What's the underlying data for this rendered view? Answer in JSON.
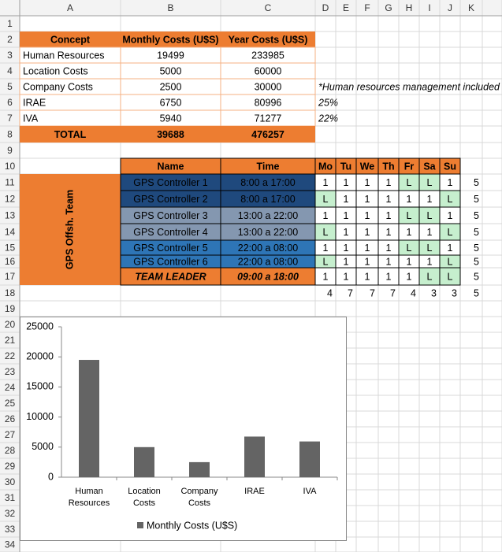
{
  "columns": [
    "A",
    "B",
    "C",
    "D",
    "E",
    "F",
    "G",
    "H",
    "I",
    "J",
    "K"
  ],
  "rows": [
    1,
    2,
    3,
    4,
    5,
    6,
    7,
    8,
    9,
    10,
    11,
    12,
    13,
    14,
    15,
    16,
    17,
    18,
    19,
    20,
    21,
    22,
    23,
    24,
    25,
    26,
    27,
    28,
    29,
    30,
    31,
    32,
    33,
    34
  ],
  "table": {
    "header": [
      "Concept",
      "Monthly Costs (U$S)",
      "Year Costs (U$S)"
    ],
    "rows": [
      [
        "Human Resources",
        19499,
        233985
      ],
      [
        "Location Costs",
        5000,
        60000
      ],
      [
        "Company Costs",
        2500,
        30000
      ],
      [
        "IRAE",
        6750,
        80996
      ],
      [
        "IVA",
        5940,
        71277
      ]
    ],
    "total": [
      "TOTAL",
      39688,
      476257
    ]
  },
  "notes": [
    "*Human resources management included",
    "25%",
    "22%"
  ],
  "schedule": {
    "team": "GPS Offsh. Team",
    "header": [
      "Name",
      "Time",
      "Mo",
      "Tu",
      "We",
      "Th",
      "Fr",
      "Sa",
      "Su"
    ],
    "rows": [
      {
        "name": "GPS Controller 1",
        "time": "8:00 a 17:00",
        "days": [
          1,
          1,
          1,
          1,
          "L",
          "L",
          1
        ],
        "total": 5
      },
      {
        "name": "GPS Controller 2",
        "time": "8:00 a 17:00",
        "days": [
          "L",
          1,
          1,
          1,
          1,
          1,
          "L"
        ],
        "total": 5
      },
      {
        "name": "GPS Controller 3",
        "time": "13:00 a 22:00",
        "days": [
          1,
          1,
          1,
          1,
          "L",
          "L",
          1
        ],
        "total": 5
      },
      {
        "name": "GPS Controller 4",
        "time": "13:00 a 22:00",
        "days": [
          "L",
          1,
          1,
          1,
          1,
          1,
          "L"
        ],
        "total": 5
      },
      {
        "name": "GPS Controller 5",
        "time": "22:00 a 08:00",
        "days": [
          1,
          1,
          1,
          1,
          "L",
          "L",
          1
        ],
        "total": 5
      },
      {
        "name": "GPS Controller 6",
        "time": "22:00 a 08:00",
        "days": [
          "L",
          1,
          1,
          1,
          1,
          1,
          "L"
        ],
        "total": 5
      },
      {
        "name": "TEAM LEADER",
        "time": "09:00 a 18:00",
        "days": [
          1,
          1,
          1,
          1,
          1,
          "L",
          "L"
        ],
        "total": 5
      }
    ],
    "day_totals": [
      4,
      7,
      7,
      7,
      4,
      3,
      3,
      5
    ]
  },
  "chart_data": {
    "type": "bar",
    "categories": [
      "Human Resources",
      "Location Costs",
      "Company Costs",
      "IRAE",
      "IVA"
    ],
    "series": [
      {
        "name": "Monthly Costs (U$S)",
        "color": "#646464",
        "values": [
          19499,
          5000,
          2500,
          6750,
          5940
        ]
      }
    ],
    "ylim": [
      0,
      25000
    ],
    "yticks": [
      0,
      5000,
      10000,
      15000,
      20000,
      25000
    ],
    "grid": false,
    "legend": "bottom"
  }
}
